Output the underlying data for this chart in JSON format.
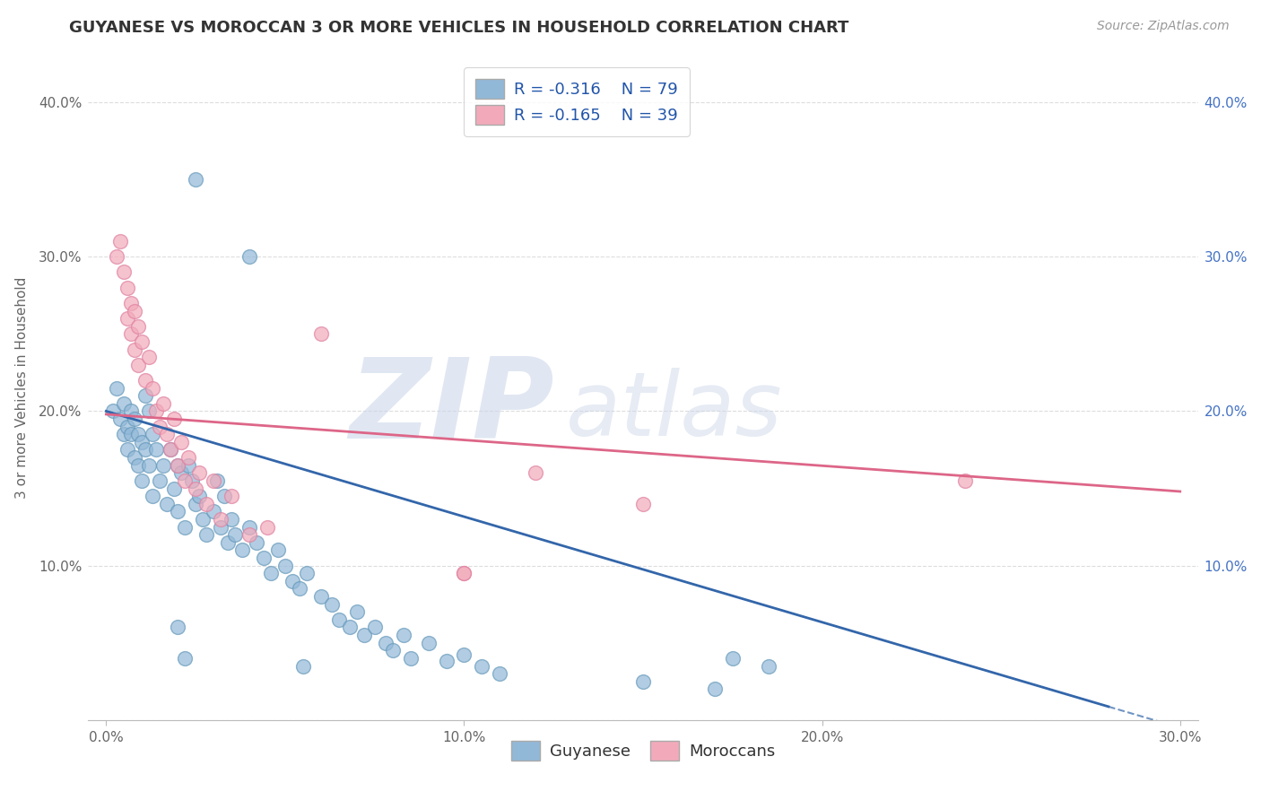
{
  "title": "GUYANESE VS MOROCCAN 3 OR MORE VEHICLES IN HOUSEHOLD CORRELATION CHART",
  "source_text": "Source: ZipAtlas.com",
  "ylabel": "3 or more Vehicles in Household",
  "y_ticks": [
    0.0,
    0.1,
    0.2,
    0.3,
    0.4
  ],
  "y_tick_labels_left": [
    "",
    "10.0%",
    "20.0%",
    "30.0%",
    "40.0%"
  ],
  "y_tick_labels_right": [
    "",
    "10.0%",
    "20.0%",
    "30.0%",
    "40.0%"
  ],
  "x_ticks": [
    0.0,
    0.1,
    0.2,
    0.3
  ],
  "x_tick_labels": [
    "0.0%",
    "10.0%",
    "20.0%",
    "30.0%"
  ],
  "x_lim": [
    -0.005,
    0.305
  ],
  "y_lim": [
    0.0,
    0.43
  ],
  "watermark_zip": "ZIP",
  "watermark_atlas": "atlas",
  "legend_entry1": "R = -0.316    N = 79",
  "legend_entry2": "R = -0.165    N = 39",
  "legend_label1": "Guyanese",
  "legend_label2": "Moroccans",
  "blue_color": "#92b8d8",
  "pink_color": "#f2aaba",
  "blue_edge_color": "#6699bb",
  "pink_edge_color": "#e080a0",
  "blue_line_color": "#3366aa",
  "pink_line_color": "#dd6688",
  "title_color": "#333333",
  "source_color": "#999999",
  "right_tick_color": "#4472c4",
  "blue_line_start_y": 0.2,
  "blue_line_end_y": -0.005,
  "pink_line_start_y": 0.198,
  "pink_line_end_y": 0.148,
  "blue_scatter": [
    [
      0.002,
      0.2
    ],
    [
      0.003,
      0.215
    ],
    [
      0.004,
      0.195
    ],
    [
      0.005,
      0.185
    ],
    [
      0.005,
      0.205
    ],
    [
      0.006,
      0.175
    ],
    [
      0.006,
      0.19
    ],
    [
      0.007,
      0.2
    ],
    [
      0.007,
      0.185
    ],
    [
      0.008,
      0.195
    ],
    [
      0.008,
      0.17
    ],
    [
      0.009,
      0.185
    ],
    [
      0.009,
      0.165
    ],
    [
      0.01,
      0.18
    ],
    [
      0.01,
      0.155
    ],
    [
      0.011,
      0.175
    ],
    [
      0.011,
      0.21
    ],
    [
      0.012,
      0.2
    ],
    [
      0.012,
      0.165
    ],
    [
      0.013,
      0.185
    ],
    [
      0.013,
      0.145
    ],
    [
      0.014,
      0.175
    ],
    [
      0.015,
      0.155
    ],
    [
      0.016,
      0.165
    ],
    [
      0.017,
      0.14
    ],
    [
      0.018,
      0.175
    ],
    [
      0.019,
      0.15
    ],
    [
      0.02,
      0.165
    ],
    [
      0.02,
      0.135
    ],
    [
      0.021,
      0.16
    ],
    [
      0.022,
      0.125
    ],
    [
      0.023,
      0.165
    ],
    [
      0.024,
      0.155
    ],
    [
      0.025,
      0.14
    ],
    [
      0.026,
      0.145
    ],
    [
      0.027,
      0.13
    ],
    [
      0.028,
      0.12
    ],
    [
      0.03,
      0.135
    ],
    [
      0.031,
      0.155
    ],
    [
      0.032,
      0.125
    ],
    [
      0.033,
      0.145
    ],
    [
      0.034,
      0.115
    ],
    [
      0.035,
      0.13
    ],
    [
      0.036,
      0.12
    ],
    [
      0.038,
      0.11
    ],
    [
      0.04,
      0.125
    ],
    [
      0.042,
      0.115
    ],
    [
      0.044,
      0.105
    ],
    [
      0.046,
      0.095
    ],
    [
      0.048,
      0.11
    ],
    [
      0.05,
      0.1
    ],
    [
      0.052,
      0.09
    ],
    [
      0.054,
      0.085
    ],
    [
      0.056,
      0.095
    ],
    [
      0.06,
      0.08
    ],
    [
      0.063,
      0.075
    ],
    [
      0.065,
      0.065
    ],
    [
      0.068,
      0.06
    ],
    [
      0.07,
      0.07
    ],
    [
      0.072,
      0.055
    ],
    [
      0.075,
      0.06
    ],
    [
      0.078,
      0.05
    ],
    [
      0.08,
      0.045
    ],
    [
      0.083,
      0.055
    ],
    [
      0.085,
      0.04
    ],
    [
      0.09,
      0.05
    ],
    [
      0.095,
      0.038
    ],
    [
      0.1,
      0.042
    ],
    [
      0.105,
      0.035
    ],
    [
      0.11,
      0.03
    ],
    [
      0.15,
      0.025
    ],
    [
      0.17,
      0.02
    ],
    [
      0.175,
      0.04
    ],
    [
      0.185,
      0.035
    ],
    [
      0.04,
      0.3
    ],
    [
      0.025,
      0.35
    ],
    [
      0.02,
      0.06
    ],
    [
      0.022,
      0.04
    ],
    [
      0.055,
      0.035
    ]
  ],
  "pink_scatter": [
    [
      0.003,
      0.3
    ],
    [
      0.004,
      0.31
    ],
    [
      0.005,
      0.29
    ],
    [
      0.006,
      0.26
    ],
    [
      0.006,
      0.28
    ],
    [
      0.007,
      0.27
    ],
    [
      0.007,
      0.25
    ],
    [
      0.008,
      0.265
    ],
    [
      0.008,
      0.24
    ],
    [
      0.009,
      0.255
    ],
    [
      0.009,
      0.23
    ],
    [
      0.01,
      0.245
    ],
    [
      0.011,
      0.22
    ],
    [
      0.012,
      0.235
    ],
    [
      0.013,
      0.215
    ],
    [
      0.014,
      0.2
    ],
    [
      0.015,
      0.19
    ],
    [
      0.016,
      0.205
    ],
    [
      0.017,
      0.185
    ],
    [
      0.018,
      0.175
    ],
    [
      0.019,
      0.195
    ],
    [
      0.02,
      0.165
    ],
    [
      0.021,
      0.18
    ],
    [
      0.022,
      0.155
    ],
    [
      0.023,
      0.17
    ],
    [
      0.025,
      0.15
    ],
    [
      0.026,
      0.16
    ],
    [
      0.028,
      0.14
    ],
    [
      0.03,
      0.155
    ],
    [
      0.032,
      0.13
    ],
    [
      0.035,
      0.145
    ],
    [
      0.04,
      0.12
    ],
    [
      0.045,
      0.125
    ],
    [
      0.06,
      0.25
    ],
    [
      0.1,
      0.095
    ],
    [
      0.12,
      0.16
    ],
    [
      0.15,
      0.14
    ],
    [
      0.24,
      0.155
    ],
    [
      0.1,
      0.095
    ]
  ],
  "grid_color": "#dddddd",
  "bg_color": "#ffffff"
}
